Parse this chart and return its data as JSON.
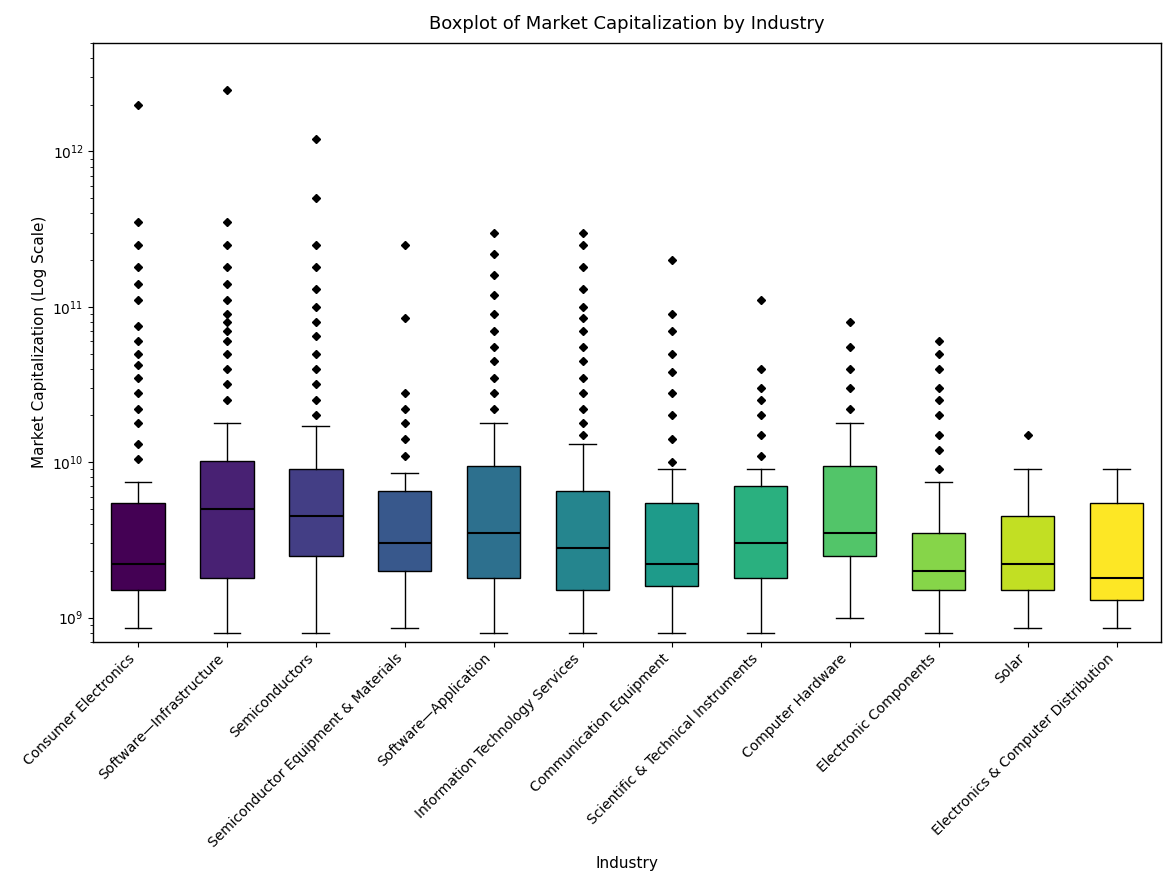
{
  "title": "Boxplot of Market Capitalization by Industry",
  "xlabel": "Industry",
  "ylabel": "Market Capitalization (Log Scale)",
  "categories": [
    "Consumer Electronics",
    "Software—Infrastructure",
    "Semiconductors",
    "Semiconductor Equipment & Materials",
    "Software—Application",
    "Information Technology Services",
    "Communication Equipment",
    "Scientific & Technical Instruments",
    "Computer Hardware",
    "Electronic Components",
    "Solar",
    "Electronics & Computer Distribution"
  ],
  "box_stats": [
    {
      "med": 2200000000.0,
      "q1": 1500000000.0,
      "q3": 5500000000.0,
      "whislo": 850000000.0,
      "whishi": 7500000000.0,
      "fliers": [
        10500000000.0,
        13000000000.0,
        18000000000.0,
        22000000000.0,
        28000000000.0,
        35000000000.0,
        42000000000.0,
        50000000000.0,
        60000000000.0,
        75000000000.0,
        110000000000.0,
        140000000000.0,
        180000000000.0,
        250000000000.0,
        350000000000.0,
        2000000000000.0
      ]
    },
    {
      "med": 5000000000.0,
      "q1": 1800000000.0,
      "q3": 10200000000.0,
      "whislo": 800000000.0,
      "whishi": 18000000000.0,
      "fliers": [
        25000000000.0,
        32000000000.0,
        40000000000.0,
        50000000000.0,
        60000000000.0,
        70000000000.0,
        80000000000.0,
        90000000000.0,
        110000000000.0,
        140000000000.0,
        180000000000.0,
        250000000000.0,
        350000000000.0,
        2500000000000.0
      ]
    },
    {
      "med": 4500000000.0,
      "q1": 2500000000.0,
      "q3": 9000000000.0,
      "whislo": 800000000.0,
      "whishi": 17000000000.0,
      "fliers": [
        20000000000.0,
        25000000000.0,
        32000000000.0,
        40000000000.0,
        50000000000.0,
        65000000000.0,
        80000000000.0,
        100000000000.0,
        130000000000.0,
        180000000000.0,
        250000000000.0,
        500000000000.0,
        1200000000000.0
      ]
    },
    {
      "med": 3000000000.0,
      "q1": 2000000000.0,
      "q3": 6500000000.0,
      "whislo": 850000000.0,
      "whishi": 8500000000.0,
      "fliers": [
        11000000000.0,
        14000000000.0,
        18000000000.0,
        22000000000.0,
        28000000000.0,
        85000000000.0,
        250000000000.0
      ]
    },
    {
      "med": 3500000000.0,
      "q1": 1800000000.0,
      "q3": 9500000000.0,
      "whislo": 800000000.0,
      "whishi": 18000000000.0,
      "fliers": [
        22000000000.0,
        28000000000.0,
        35000000000.0,
        45000000000.0,
        55000000000.0,
        70000000000.0,
        90000000000.0,
        120000000000.0,
        160000000000.0,
        220000000000.0,
        300000000000.0
      ]
    },
    {
      "med": 2800000000.0,
      "q1": 1500000000.0,
      "q3": 6500000000.0,
      "whislo": 800000000.0,
      "whishi": 13000000000.0,
      "fliers": [
        15000000000.0,
        18000000000.0,
        22000000000.0,
        28000000000.0,
        35000000000.0,
        45000000000.0,
        55000000000.0,
        70000000000.0,
        85000000000.0,
        100000000000.0,
        130000000000.0,
        180000000000.0,
        250000000000.0,
        300000000000.0
      ]
    },
    {
      "med": 2200000000.0,
      "q1": 1600000000.0,
      "q3": 5500000000.0,
      "whislo": 800000000.0,
      "whishi": 9000000000.0,
      "fliers": [
        10000000000.0,
        14000000000.0,
        20000000000.0,
        28000000000.0,
        38000000000.0,
        50000000000.0,
        70000000000.0,
        90000000000.0,
        200000000000.0
      ]
    },
    {
      "med": 3000000000.0,
      "q1": 1800000000.0,
      "q3": 7000000000.0,
      "whislo": 800000000.0,
      "whishi": 9000000000.0,
      "fliers": [
        11000000000.0,
        15000000000.0,
        20000000000.0,
        25000000000.0,
        30000000000.0,
        40000000000.0,
        110000000000.0
      ]
    },
    {
      "med": 3500000000.0,
      "q1": 2500000000.0,
      "q3": 9500000000.0,
      "whislo": 1000000000.0,
      "whishi": 18000000000.0,
      "fliers": [
        22000000000.0,
        30000000000.0,
        40000000000.0,
        55000000000.0,
        80000000000.0
      ]
    },
    {
      "med": 2000000000.0,
      "q1": 1500000000.0,
      "q3": 3500000000.0,
      "whislo": 800000000.0,
      "whishi": 7500000000.0,
      "fliers": [
        9000000000.0,
        12000000000.0,
        15000000000.0,
        20000000000.0,
        25000000000.0,
        30000000000.0,
        40000000000.0,
        50000000000.0,
        60000000000.0
      ]
    },
    {
      "med": 2200000000.0,
      "q1": 1500000000.0,
      "q3": 4500000000.0,
      "whislo": 850000000.0,
      "whishi": 9000000000.0,
      "fliers": [
        15000000000.0
      ]
    },
    {
      "med": 1800000000.0,
      "q1": 1300000000.0,
      "q3": 5500000000.0,
      "whislo": 850000000.0,
      "whishi": 9000000000.0,
      "fliers": []
    }
  ],
  "cmap_name": "viridis",
  "n_colors": 12,
  "ylim": [
    700000000.0,
    5000000000000.0
  ],
  "figsize": [
    11.76,
    8.86
  ],
  "dpi": 100,
  "box_width": 0.6,
  "linewidth": 1.0,
  "median_linewidth": 1.5,
  "flier_marker": "D",
  "flier_size": 4,
  "title_fontsize": 13,
  "label_fontsize": 11,
  "tick_fontsize": 10
}
